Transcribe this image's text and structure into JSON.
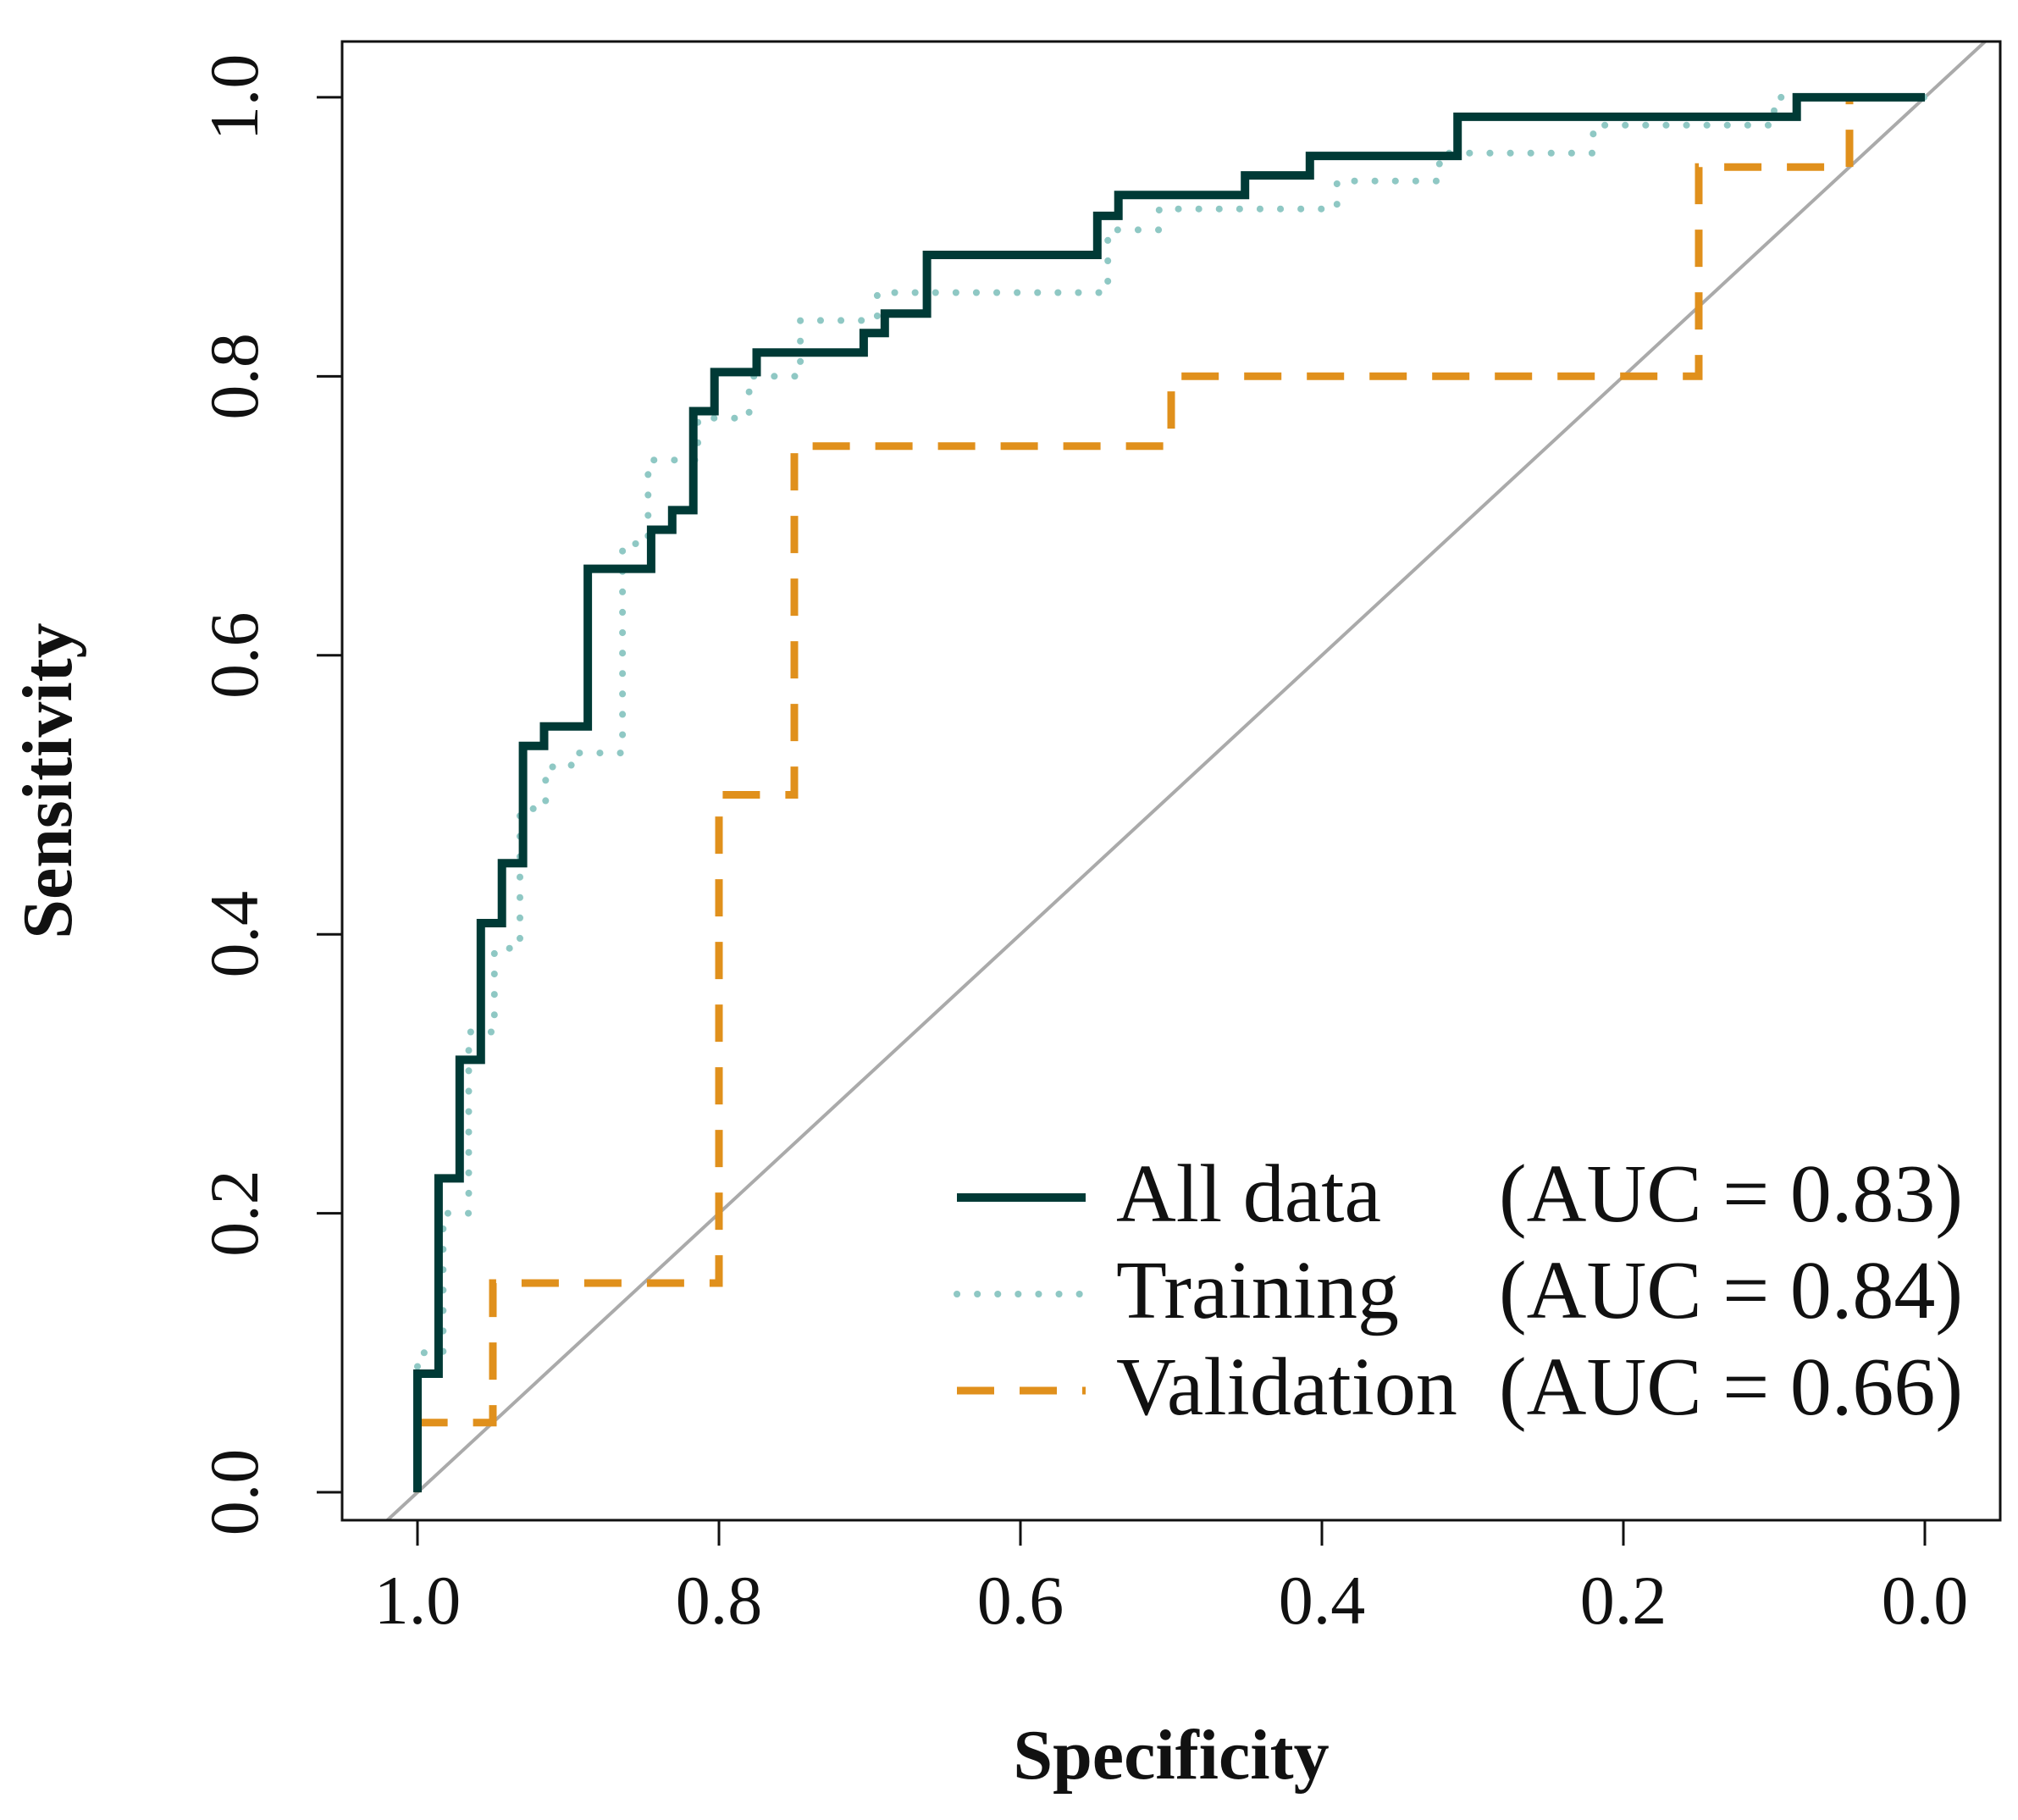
{
  "chart_data": {
    "type": "line",
    "title": "",
    "xlabel": "Specificity",
    "ylabel": "Sensitivity",
    "xlim": [
      1.05,
      -0.05
    ],
    "ylim": [
      -0.02,
      1.04
    ],
    "x_reversed": true,
    "grid": false,
    "legend_position": "bottom-right",
    "x_ticks": [
      {
        "value": 1.0,
        "label": "1.0"
      },
      {
        "value": 0.8,
        "label": "0.8"
      },
      {
        "value": 0.6,
        "label": "0.6"
      },
      {
        "value": 0.4,
        "label": "0.4"
      },
      {
        "value": 0.2,
        "label": "0.2"
      },
      {
        "value": 0.0,
        "label": "0.0"
      }
    ],
    "y_ticks": [
      {
        "value": 0.0,
        "label": "0.0"
      },
      {
        "value": 0.2,
        "label": "0.2"
      },
      {
        "value": 0.4,
        "label": "0.4"
      },
      {
        "value": 0.6,
        "label": "0.6"
      },
      {
        "value": 0.8,
        "label": "0.8"
      },
      {
        "value": 1.0,
        "label": "1.0"
      }
    ],
    "reference_line": {
      "name": "chance",
      "color": "#aaaaaa",
      "from": [
        1.05,
        -0.05
      ],
      "to": [
        -0.05,
        1.05
      ]
    },
    "series": [
      {
        "name": "All data",
        "auc_label": "(AUC = 0.83)",
        "color": "#003a36",
        "style": "solid",
        "x": [
          1.0,
          1.0,
          0.986,
          0.986,
          0.972,
          0.972,
          0.958,
          0.958,
          0.944,
          0.944,
          0.93,
          0.93,
          0.916,
          0.916,
          0.887,
          0.887,
          0.845,
          0.845,
          0.831,
          0.831,
          0.817,
          0.817,
          0.803,
          0.803,
          0.775,
          0.775,
          0.704,
          0.704,
          0.69,
          0.69,
          0.662,
          0.662,
          0.549,
          0.549,
          0.535,
          0.535,
          0.451,
          0.451,
          0.408,
          0.408,
          0.31,
          0.31,
          0.225,
          0.225,
          0.085,
          0.085,
          0.0
        ],
        "y": [
          0.0,
          0.085,
          0.085,
          0.225,
          0.225,
          0.31,
          0.31,
          0.408,
          0.408,
          0.451,
          0.451,
          0.535,
          0.535,
          0.549,
          0.549,
          0.662,
          0.662,
          0.69,
          0.69,
          0.704,
          0.704,
          0.775,
          0.775,
          0.803,
          0.803,
          0.817,
          0.817,
          0.831,
          0.831,
          0.845,
          0.845,
          0.887,
          0.887,
          0.915,
          0.915,
          0.93,
          0.93,
          0.944,
          0.944,
          0.958,
          0.958,
          0.986,
          0.986,
          0.986,
          0.986,
          1.0,
          1.0
        ]
      },
      {
        "name": "Training",
        "auc_label": "(AUC = 0.84)",
        "color": "#8fc8c4",
        "style": "dotted",
        "x": [
          1.0,
          1.0,
          0.983,
          0.983,
          0.966,
          0.966,
          0.949,
          0.949,
          0.932,
          0.932,
          0.915,
          0.915,
          0.898,
          0.898,
          0.864,
          0.864,
          0.847,
          0.847,
          0.814,
          0.814,
          0.78,
          0.78,
          0.746,
          0.746,
          0.695,
          0.695,
          0.542,
          0.542,
          0.508,
          0.508,
          0.39,
          0.39,
          0.322,
          0.322,
          0.22,
          0.22,
          0.1,
          0.1,
          0.0
        ],
        "y": [
          0.017,
          0.1,
          0.1,
          0.2,
          0.2,
          0.33,
          0.33,
          0.39,
          0.39,
          0.49,
          0.49,
          0.52,
          0.52,
          0.53,
          0.53,
          0.68,
          0.68,
          0.74,
          0.74,
          0.77,
          0.77,
          0.8,
          0.8,
          0.84,
          0.84,
          0.86,
          0.86,
          0.905,
          0.905,
          0.92,
          0.92,
          0.94,
          0.94,
          0.96,
          0.96,
          0.98,
          0.98,
          1.0,
          1.0
        ]
      },
      {
        "name": "Validation",
        "auc_label": "(AUC = 0.66)",
        "color": "#e0901c",
        "style": "dashed",
        "x": [
          1.0,
          1.0,
          0.95,
          0.95,
          0.8,
          0.8,
          0.75,
          0.75,
          0.5,
          0.5,
          0.15,
          0.15,
          0.05,
          0.05,
          0.0
        ],
        "y": [
          0.0,
          0.05,
          0.05,
          0.15,
          0.15,
          0.5,
          0.5,
          0.75,
          0.75,
          0.8,
          0.8,
          0.95,
          0.95,
          1.0,
          1.0
        ]
      }
    ]
  }
}
